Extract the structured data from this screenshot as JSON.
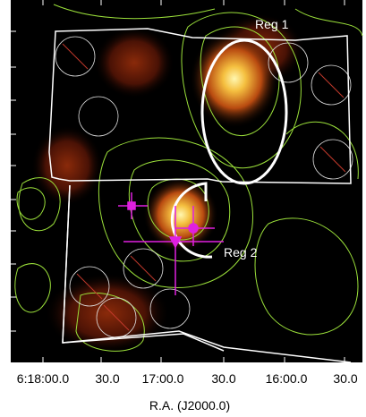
{
  "x_axis": {
    "tick_labels": [
      "6:18:00.0",
      "30.0",
      "17:00.0",
      "30.0",
      "16:00.0",
      "30.0"
    ],
    "title": "R.A. (J2000.0)"
  },
  "annotations": {
    "region_1": "Reg 1",
    "region_2": "Reg 2"
  }
}
